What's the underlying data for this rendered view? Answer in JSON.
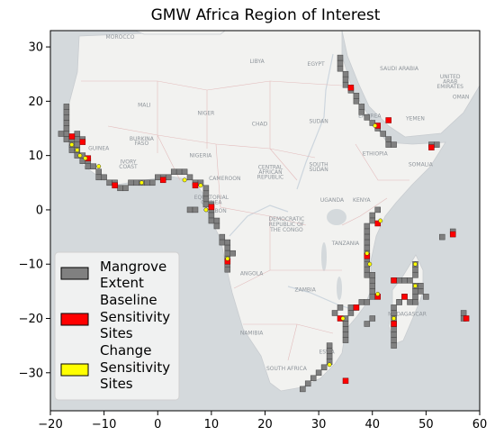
{
  "chart_data": {
    "type": "scatter",
    "title": "GMW Africa Region of Interest",
    "xlabel": "",
    "ylabel": "",
    "xlim": [
      -20,
      60
    ],
    "ylim": [
      -37,
      33
    ],
    "xticks": [
      -20,
      -10,
      0,
      10,
      20,
      30,
      40,
      50,
      60
    ],
    "yticks": [
      -30,
      -20,
      -10,
      0,
      10,
      20,
      30
    ],
    "grid": false,
    "legend": {
      "placement": "lower-left",
      "entries": [
        {
          "label_lines": [
            "Mangrove",
            "Extent"
          ],
          "color": "#808080"
        },
        {
          "label_lines": [
            "Baseline",
            "Sensitivity",
            "Sites"
          ],
          "color": "#ff0000"
        },
        {
          "label_lines": [
            "Change",
            "Sensitivity",
            "Sites"
          ],
          "color": "#ffff00"
        }
      ]
    },
    "colors": {
      "ocean": "#d4d9dc",
      "land": "#f2f2f0",
      "mangrove": "#808080",
      "baseline": "#ff0000",
      "change": "#ffff00"
    },
    "map_labels": [
      {
        "text": "MOROCCO",
        "lon": -7,
        "lat": 31.5
      },
      {
        "text": "EGYPT",
        "lon": 29.5,
        "lat": 26.5
      },
      {
        "text": "LIBYA",
        "lon": 18.5,
        "lat": 27
      },
      {
        "text": "SAUDI ARABIA",
        "lon": 45,
        "lat": 25.7
      },
      {
        "text": "UNITED",
        "lon": 54.5,
        "lat": 24.2
      },
      {
        "text": "ARAB",
        "lon": 54.5,
        "lat": 23.3
      },
      {
        "text": "EMIRATES",
        "lon": 54.5,
        "lat": 22.4
      },
      {
        "text": "OMAN",
        "lon": 56.5,
        "lat": 20.5
      },
      {
        "text": "MALI",
        "lon": -2.5,
        "lat": 19
      },
      {
        "text": "NIGER",
        "lon": 9,
        "lat": 17.5
      },
      {
        "text": "CHAD",
        "lon": 19,
        "lat": 15.5
      },
      {
        "text": "SUDAN",
        "lon": 30,
        "lat": 16
      },
      {
        "text": "ERITREA",
        "lon": 39.5,
        "lat": 17
      },
      {
        "text": "YEMEN",
        "lon": 48,
        "lat": 16.5
      },
      {
        "text": "BURKINA",
        "lon": -3,
        "lat": 12.8
      },
      {
        "text": "FASO",
        "lon": -3,
        "lat": 11.9
      },
      {
        "text": "GUINEA",
        "lon": -11,
        "lat": 11
      },
      {
        "text": "NIGERIA",
        "lon": 8,
        "lat": 9.7
      },
      {
        "text": "ETHIOPIA",
        "lon": 40.5,
        "lat": 10
      },
      {
        "text": "SOMALIA",
        "lon": 49,
        "lat": 8
      },
      {
        "text": "IVORY",
        "lon": -5.5,
        "lat": 8.5
      },
      {
        "text": "COAST",
        "lon": -5.5,
        "lat": 7.6
      },
      {
        "text": "CENTRAL",
        "lon": 21,
        "lat": 7.5
      },
      {
        "text": "AFRICAN",
        "lon": 21,
        "lat": 6.6
      },
      {
        "text": "REPUBLIC",
        "lon": 21,
        "lat": 5.7
      },
      {
        "text": "SOUTH",
        "lon": 30,
        "lat": 8
      },
      {
        "text": "SUDAN",
        "lon": 30,
        "lat": 7.1
      },
      {
        "text": "CAMEROON",
        "lon": 12.5,
        "lat": 5.5
      },
      {
        "text": "EQUATORIAL",
        "lon": 10,
        "lat": 2
      },
      {
        "text": "GUINEA",
        "lon": 10,
        "lat": 1.1
      },
      {
        "text": "UGANDA",
        "lon": 32.5,
        "lat": 1.5
      },
      {
        "text": "KENYA",
        "lon": 38,
        "lat": 1.5
      },
      {
        "text": "GABON",
        "lon": 11,
        "lat": -0.5
      },
      {
        "text": "DEMOCRATIC",
        "lon": 24,
        "lat": -2
      },
      {
        "text": "REPUBLIC OF",
        "lon": 24,
        "lat": -3
      },
      {
        "text": "THE CONGO",
        "lon": 24,
        "lat": -4
      },
      {
        "text": "TANZANIA",
        "lon": 35,
        "lat": -6.5
      },
      {
        "text": "ANGOLA",
        "lon": 17.5,
        "lat": -12
      },
      {
        "text": "ZAMBIA",
        "lon": 27.5,
        "lat": -15
      },
      {
        "text": "NAMIBIA",
        "lon": 17.5,
        "lat": -23
      },
      {
        "text": "MADAGASCAR",
        "lon": 46.5,
        "lat": -19.5
      },
      {
        "text": "ESWA",
        "lon": 31.5,
        "lat": -26.5
      },
      {
        "text": "SOUTH AFRICA",
        "lon": 24,
        "lat": -29.5
      }
    ],
    "mangrove_cells": [
      [
        -17,
        19
      ],
      [
        -17,
        18
      ],
      [
        -17,
        17
      ],
      [
        -17,
        16
      ],
      [
        -17,
        15
      ],
      [
        -17,
        14
      ],
      [
        -18,
        14
      ],
      [
        -17,
        13
      ],
      [
        -16,
        13
      ],
      [
        -16,
        12
      ],
      [
        -16,
        11
      ],
      [
        -15,
        12
      ],
      [
        -15,
        11
      ],
      [
        -15,
        10
      ],
      [
        -14,
        10
      ],
      [
        -14,
        9
      ],
      [
        -14,
        13
      ],
      [
        -15,
        14
      ],
      [
        -15,
        13
      ],
      [
        -13,
        9
      ],
      [
        -13,
        8
      ],
      [
        -12,
        8
      ],
      [
        -11,
        7
      ],
      [
        -11,
        6
      ],
      [
        -10,
        6
      ],
      [
        -9,
        5
      ],
      [
        -8,
        5
      ],
      [
        -7,
        4
      ],
      [
        -6,
        4
      ],
      [
        -5,
        5
      ],
      [
        -4,
        5
      ],
      [
        -3,
        5
      ],
      [
        -2,
        5
      ],
      [
        -1,
        5
      ],
      [
        0,
        6
      ],
      [
        1,
        6
      ],
      [
        2,
        6
      ],
      [
        3,
        7
      ],
      [
        4,
        7
      ],
      [
        5,
        7
      ],
      [
        6,
        6
      ],
      [
        7,
        5
      ],
      [
        8,
        5
      ],
      [
        9,
        4
      ],
      [
        9,
        3
      ],
      [
        9,
        2
      ],
      [
        9,
        1
      ],
      [
        10,
        1
      ],
      [
        10,
        0
      ],
      [
        10,
        -1
      ],
      [
        10,
        -2
      ],
      [
        11,
        -2
      ],
      [
        6,
        0
      ],
      [
        7,
        0
      ],
      [
        11,
        -3
      ],
      [
        12,
        -5
      ],
      [
        12,
        -6
      ],
      [
        13,
        -6
      ],
      [
        13,
        -7
      ],
      [
        13,
        -8
      ],
      [
        13,
        -9
      ],
      [
        13,
        -10
      ],
      [
        13,
        -11
      ],
      [
        14,
        -8
      ],
      [
        34,
        28
      ],
      [
        34,
        27
      ],
      [
        34,
        26
      ],
      [
        35,
        25
      ],
      [
        35,
        24
      ],
      [
        35,
        23
      ],
      [
        36,
        22
      ],
      [
        37,
        21
      ],
      [
        37,
        20
      ],
      [
        38,
        19
      ],
      [
        38,
        18
      ],
      [
        39,
        17
      ],
      [
        40,
        16
      ],
      [
        41,
        15
      ],
      [
        42,
        14
      ],
      [
        43,
        13
      ],
      [
        43,
        12
      ],
      [
        44,
        12
      ],
      [
        51,
        12
      ],
      [
        52,
        12
      ],
      [
        41,
        0
      ],
      [
        40,
        -1
      ],
      [
        40,
        -2
      ],
      [
        39,
        -3
      ],
      [
        39,
        -4
      ],
      [
        39,
        -5
      ],
      [
        39,
        -6
      ],
      [
        39,
        -7
      ],
      [
        39,
        -8
      ],
      [
        39,
        -9
      ],
      [
        39,
        -10
      ],
      [
        39,
        -11
      ],
      [
        39,
        -12
      ],
      [
        40,
        -12
      ],
      [
        40,
        -13
      ],
      [
        40,
        -14
      ],
      [
        40,
        -15
      ],
      [
        40,
        -16
      ],
      [
        39,
        -17
      ],
      [
        38,
        -17
      ],
      [
        37,
        -18
      ],
      [
        36,
        -19
      ],
      [
        35,
        -20
      ],
      [
        35,
        -21
      ],
      [
        35,
        -22
      ],
      [
        35,
        -23
      ],
      [
        35,
        -24
      ],
      [
        32,
        -25
      ],
      [
        32,
        -26
      ],
      [
        32,
        -27
      ],
      [
        32,
        -28
      ],
      [
        31,
        -29
      ],
      [
        30,
        -30
      ],
      [
        29,
        -31
      ],
      [
        28,
        -32
      ],
      [
        27,
        -33
      ],
      [
        33,
        -19
      ],
      [
        34,
        -18
      ],
      [
        36,
        -18
      ],
      [
        40,
        -20
      ],
      [
        39,
        -21
      ],
      [
        44,
        -13
      ],
      [
        45,
        -13
      ],
      [
        46,
        -13
      ],
      [
        47,
        -13
      ],
      [
        48,
        -12
      ],
      [
        48,
        -11
      ],
      [
        48,
        -10
      ],
      [
        48,
        -15
      ],
      [
        48,
        -14
      ],
      [
        48,
        -16
      ],
      [
        49,
        -14
      ],
      [
        49,
        -15
      ],
      [
        46,
        -16
      ],
      [
        45,
        -17
      ],
      [
        44,
        -18
      ],
      [
        44,
        -19
      ],
      [
        44,
        -20
      ],
      [
        44,
        -21
      ],
      [
        44,
        -22
      ],
      [
        44,
        -23
      ],
      [
        44,
        -24
      ],
      [
        44,
        -25
      ],
      [
        45,
        -17
      ],
      [
        47,
        -17
      ],
      [
        48,
        -17
      ],
      [
        50,
        -16
      ],
      [
        53,
        -5
      ],
      [
        57,
        -19
      ],
      [
        57,
        -20
      ],
      [
        55,
        -4
      ]
    ],
    "baseline_sites": [
      [
        -16,
        13.5
      ],
      [
        -14,
        12.5
      ],
      [
        -13,
        9.5
      ],
      [
        -8,
        4.5
      ],
      [
        1,
        5.5
      ],
      [
        7,
        4.5
      ],
      [
        10,
        0.5
      ],
      [
        13,
        -9.5
      ],
      [
        36,
        22.5
      ],
      [
        41,
        15.5
      ],
      [
        43,
        16.5
      ],
      [
        51,
        11.5
      ],
      [
        41,
        -2.5
      ],
      [
        39,
        -8.5
      ],
      [
        41,
        -16
      ],
      [
        37,
        -18
      ],
      [
        34,
        -20
      ],
      [
        35,
        -31.5
      ],
      [
        44,
        -13
      ],
      [
        46,
        -16
      ],
      [
        44,
        -21
      ],
      [
        55,
        -4.5
      ],
      [
        57.5,
        -20
      ]
    ],
    "change_sites": [
      [
        -16,
        12
      ],
      [
        -15,
        11
      ],
      [
        -14.5,
        10
      ],
      [
        -13.5,
        9.5
      ],
      [
        -11,
        8
      ],
      [
        -3,
        5
      ],
      [
        5,
        5.5
      ],
      [
        8,
        4.5
      ],
      [
        9,
        0
      ],
      [
        13,
        -9
      ],
      [
        40.5,
        15.5
      ],
      [
        41.5,
        -2
      ],
      [
        39,
        -8
      ],
      [
        39.5,
        -10
      ],
      [
        41,
        -15.5
      ],
      [
        48,
        -10
      ],
      [
        48,
        -14
      ],
      [
        44,
        -20
      ],
      [
        34.5,
        -20
      ],
      [
        32,
        -28.5
      ]
    ]
  }
}
